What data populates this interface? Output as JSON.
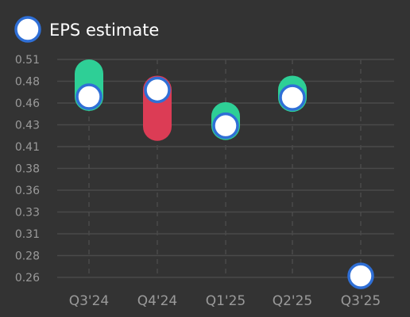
{
  "chart_data": {
    "type": "scatter",
    "legend": {
      "placement": "top-left",
      "entries": [
        "EPS estimate"
      ]
    },
    "categories": [
      "Q3'24",
      "Q4'24",
      "Q1'25",
      "Q2'25",
      "Q3'25"
    ],
    "estimate": [
      0.469,
      0.477,
      0.435,
      0.468,
      0.259
    ],
    "actual": [
      0.496,
      0.434,
      0.446,
      0.477,
      null
    ],
    "y_ticks": [
      "0.26",
      "0.28",
      "0.31",
      "0.33",
      "0.36",
      "0.38",
      "0.41",
      "0.43",
      "0.46",
      "0.48",
      "0.51"
    ],
    "ylim": [
      0.2573,
      0.5127
    ],
    "grid": true,
    "colors": {
      "background": "#333333",
      "grid": "#4a4a4a",
      "beat": "#2ecf96",
      "miss": "#dc3c55",
      "marker_fill": "#ffffff",
      "marker_stroke": "#2f6fd6"
    }
  }
}
